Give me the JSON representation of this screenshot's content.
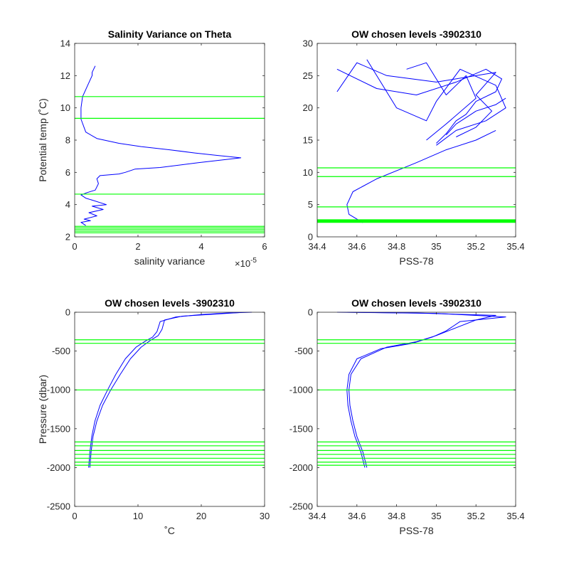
{
  "chart_data": [
    {
      "type": "line",
      "title": "Salinity Variance on Theta",
      "xlabel": "salinity variance",
      "ylabel": "Potential temp (˚C)",
      "exponent_label": "×10",
      "exponent_value": "-5",
      "xlim": [
        0,
        6
      ],
      "ylim": [
        2,
        14
      ],
      "xticks": [
        "0",
        "2",
        "4",
        "6"
      ],
      "yticks": [
        "2",
        "4",
        "6",
        "8",
        "10",
        "12",
        "14"
      ],
      "line_color": "#0000ff",
      "level_color": "#00ff00",
      "series": [
        {
          "x": [
            0.65,
            0.55,
            0.55,
            0.25,
            0.2,
            0.2,
            0.35,
            0.7,
            1.4,
            2.1,
            3.0,
            3.8,
            4.5,
            5.25,
            3.9,
            2.7,
            1.9,
            1.6,
            1.4,
            0.8,
            0.7,
            0.75,
            0.65,
            0.4,
            0.2,
            0.35,
            0.6,
            1.0,
            0.55,
            0.9,
            0.45,
            0.7,
            0.3,
            0.5,
            0.2,
            0.35
          ],
          "y": [
            12.6,
            12.2,
            12.0,
            10.7,
            10.0,
            9.3,
            8.5,
            8.1,
            7.8,
            7.6,
            7.4,
            7.2,
            7.05,
            6.9,
            6.6,
            6.3,
            6.2,
            6.0,
            5.9,
            5.8,
            5.6,
            5.3,
            4.9,
            4.75,
            4.6,
            4.4,
            4.25,
            4.0,
            3.9,
            3.7,
            3.5,
            3.3,
            3.1,
            3.0,
            2.9,
            2.7
          ]
        }
      ],
      "levels": [
        10.7,
        9.35,
        4.65,
        2.65,
        2.55,
        2.45,
        2.35,
        2.25
      ]
    },
    {
      "type": "line",
      "title": "OW chosen levels -3902310",
      "xlabel": "PSS-78",
      "xlim": [
        34.4,
        35.4
      ],
      "ylim": [
        0,
        30
      ],
      "xticks": [
        "34.4",
        "34.6",
        "34.8",
        "35",
        "35.2",
        "35.4"
      ],
      "yticks": [
        "0",
        "5",
        "10",
        "15",
        "20",
        "25",
        "30"
      ],
      "line_color": "#0000ff",
      "level_color": "#00ff00",
      "series": [
        {
          "x": [
            34.63,
            34.56,
            34.55,
            34.58,
            34.7,
            34.9,
            35.05,
            35.2,
            35.3
          ],
          "y": [
            2.2,
            3.5,
            5.0,
            7.0,
            9.0,
            11.5,
            13.5,
            15.0,
            16.5
          ]
        },
        {
          "x": [
            35.0,
            35.05,
            35.1,
            35.15,
            35.2,
            35.3,
            35.33,
            35.25,
            35.1,
            34.9,
            34.7,
            34.5
          ],
          "y": [
            14.5,
            16.0,
            18.0,
            19.0,
            21.0,
            22.5,
            24.5,
            26.0,
            24.0,
            22.0,
            23.0,
            26.0
          ]
        },
        {
          "x": [
            35.1,
            35.2,
            35.28,
            35.2,
            35.3,
            35.0,
            34.75,
            34.6,
            34.5
          ],
          "y": [
            15.5,
            17.0,
            19.5,
            22.0,
            25.5,
            24.0,
            25.0,
            27.0,
            22.5
          ]
        },
        {
          "x": [
            35.0,
            35.1,
            35.25,
            35.35,
            35.3,
            35.12,
            35.0,
            34.95,
            34.8,
            34.65
          ],
          "y": [
            14.2,
            16.5,
            18.0,
            20.0,
            23.5,
            26.0,
            21.0,
            18.0,
            20.0,
            27.5
          ]
        },
        {
          "x": [
            34.95,
            35.05,
            35.2,
            35.15,
            35.05,
            34.95,
            34.85
          ],
          "y": [
            15.0,
            17.5,
            21.5,
            25.0,
            22.0,
            27.0,
            26.0
          ]
        },
        {
          "x": [
            35.05,
            35.1,
            35.15,
            35.2,
            35.3,
            35.35
          ],
          "y": [
            15.8,
            17.5,
            18.5,
            19.5,
            20.5,
            21.5
          ]
        }
      ],
      "levels": [
        10.7,
        9.35,
        4.65,
        2.65,
        2.55,
        2.45,
        2.35,
        2.25
      ]
    },
    {
      "type": "line",
      "title": "OW chosen levels -3902310",
      "xlabel": "˚C",
      "ylabel": "Pressure (dbar)",
      "xlim": [
        0,
        30
      ],
      "ylim": [
        -2500,
        0
      ],
      "xticks": [
        "0",
        "10",
        "20",
        "30"
      ],
      "yticks": [
        "-2500",
        "-2000",
        "-1500",
        "-1000",
        "-500",
        "0"
      ],
      "line_color": "#0000ff",
      "level_color": "#00ff00",
      "series": [
        {
          "x": [
            2.2,
            2.4,
            2.7,
            3.2,
            4.0,
            5.2,
            6.5,
            8.0,
            9.7,
            11.2,
            12.3,
            13.0,
            13.5,
            16.0,
            20.0,
            24.0,
            28.0
          ],
          "y": [
            -2000,
            -1800,
            -1600,
            -1400,
            -1200,
            -1000,
            -800,
            -600,
            -450,
            -370,
            -320,
            -250,
            -120,
            -60,
            -30,
            -10,
            0
          ]
        },
        {
          "x": [
            2.4,
            2.6,
            2.9,
            3.5,
            4.4,
            5.7,
            7.2,
            8.8,
            10.5,
            12.0,
            13.2,
            13.8,
            14.2,
            17.0,
            22.0,
            26.0
          ],
          "y": [
            -2000,
            -1800,
            -1600,
            -1400,
            -1200,
            -1000,
            -800,
            -600,
            -450,
            -360,
            -300,
            -220,
            -100,
            -50,
            -25,
            -5
          ]
        }
      ],
      "levels": [
        -355,
        -400,
        -1000,
        -1670,
        -1720,
        -1780,
        -1830,
        -1880,
        -1930,
        -1970
      ]
    },
    {
      "type": "line",
      "title": "OW chosen levels -3902310",
      "xlabel": "PSS-78",
      "xlim": [
        34.4,
        35.4
      ],
      "ylim": [
        -2500,
        0
      ],
      "xticks": [
        "34.4",
        "34.6",
        "34.8",
        "35",
        "35.2",
        "35.4"
      ],
      "yticks": [
        "-2500",
        "-2000",
        "-1500",
        "-1000",
        "-500",
        "0"
      ],
      "line_color": "#0000ff",
      "level_color": "#00ff00",
      "series": [
        {
          "x": [
            34.65,
            34.63,
            34.6,
            34.58,
            34.565,
            34.56,
            34.57,
            34.62,
            34.75,
            34.9,
            35.0,
            35.1,
            35.2,
            35.3,
            34.9,
            34.5
          ],
          "y": [
            -2000,
            -1800,
            -1600,
            -1400,
            -1200,
            -1000,
            -800,
            -600,
            -450,
            -380,
            -300,
            -200,
            -100,
            -40,
            -10,
            0
          ]
        },
        {
          "x": [
            34.64,
            34.62,
            34.59,
            34.57,
            34.555,
            34.55,
            34.56,
            34.6,
            34.72,
            34.88,
            34.98,
            35.05,
            35.12,
            35.35,
            35.0,
            34.55
          ],
          "y": [
            -2000,
            -1800,
            -1600,
            -1400,
            -1200,
            -1000,
            -800,
            -600,
            -470,
            -400,
            -320,
            -240,
            -120,
            -60,
            -15,
            0
          ]
        }
      ],
      "levels": [
        -355,
        -400,
        -1000,
        -1670,
        -1720,
        -1780,
        -1830,
        -1880,
        -1930,
        -1970
      ]
    }
  ]
}
